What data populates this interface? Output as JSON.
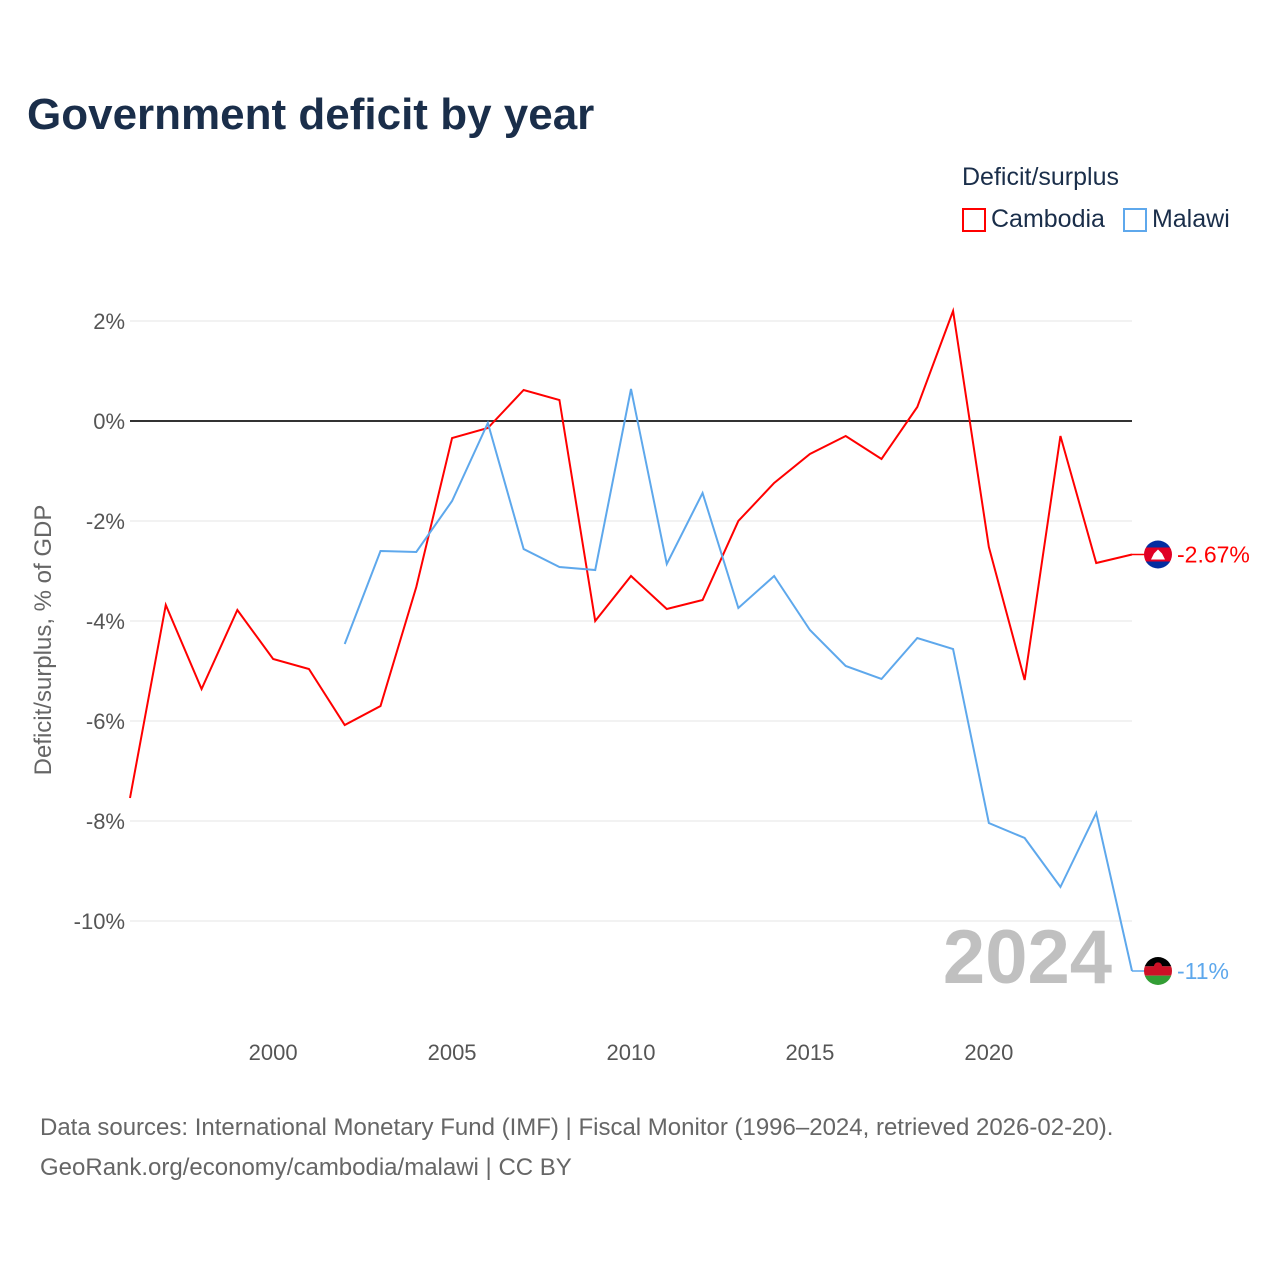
{
  "title": "Government deficit by year",
  "legend": {
    "title": "Deficit/surplus",
    "items": [
      {
        "name": "Cambodia",
        "color": "#ff0000"
      },
      {
        "name": "Malawi",
        "color": "#5ea8ec"
      }
    ]
  },
  "footer": {
    "line1": "Data sources: International Monetary Fund (IMF) | Fiscal Monitor (1996–2024, retrieved 2026-02-20).",
    "line2": "GeoRank.org/economy/cambodia/malawi | CC BY"
  },
  "chart_data": {
    "type": "line",
    "title": "Government deficit by year",
    "ylabel": "Deficit/surplus, % of GDP",
    "xlabel": "",
    "xlim": [
      1996,
      2024
    ],
    "ylim": [
      -11.8,
      2.4
    ],
    "yticks": [
      2,
      0,
      -2,
      -4,
      -6,
      -8,
      -10
    ],
    "ytick_labels": [
      "2%",
      "0%",
      "-2%",
      "-4%",
      "-6%",
      "-8%",
      "-10%"
    ],
    "xticks": [
      2000,
      2005,
      2010,
      2015,
      2020
    ],
    "xtick_labels": [
      "2000",
      "2005",
      "2010",
      "2015",
      "2020"
    ],
    "year_watermark": "2024",
    "series": [
      {
        "name": "Cambodia",
        "color": "#ff0000",
        "end_label": "-2.67%",
        "x": [
          1996,
          1997,
          1998,
          1999,
          2000,
          2001,
          2002,
          2003,
          2004,
          2005,
          2006,
          2007,
          2008,
          2009,
          2010,
          2011,
          2012,
          2013,
          2014,
          2015,
          2016,
          2017,
          2018,
          2019,
          2020,
          2021,
          2022,
          2023,
          2024
        ],
        "values": [
          -7.54,
          -3.68,
          -5.36,
          -3.78,
          -4.76,
          -4.96,
          -6.08,
          -5.7,
          -3.32,
          -0.34,
          -0.14,
          0.62,
          0.42,
          -4.0,
          -3.1,
          -3.76,
          -3.58,
          -2.0,
          -1.24,
          -0.66,
          -0.3,
          -0.76,
          0.28,
          2.2,
          -2.52,
          -5.18,
          -0.3,
          -2.84,
          -2.67
        ]
      },
      {
        "name": "Malawi",
        "color": "#5ea8ec",
        "end_label": "-11%",
        "x": [
          2002,
          2003,
          2004,
          2005,
          2006,
          2007,
          2008,
          2009,
          2010,
          2011,
          2012,
          2013,
          2014,
          2015,
          2016,
          2017,
          2018,
          2019,
          2020,
          2021,
          2022,
          2023,
          2024
        ],
        "values": [
          -4.46,
          -2.6,
          -2.62,
          -1.6,
          -0.04,
          -2.56,
          -2.92,
          -2.98,
          0.64,
          -2.86,
          -1.44,
          -3.74,
          -3.1,
          -4.18,
          -4.9,
          -5.16,
          -4.34,
          -4.56,
          -8.04,
          -8.34,
          -9.32,
          -7.84,
          -11.0
        ]
      }
    ]
  }
}
